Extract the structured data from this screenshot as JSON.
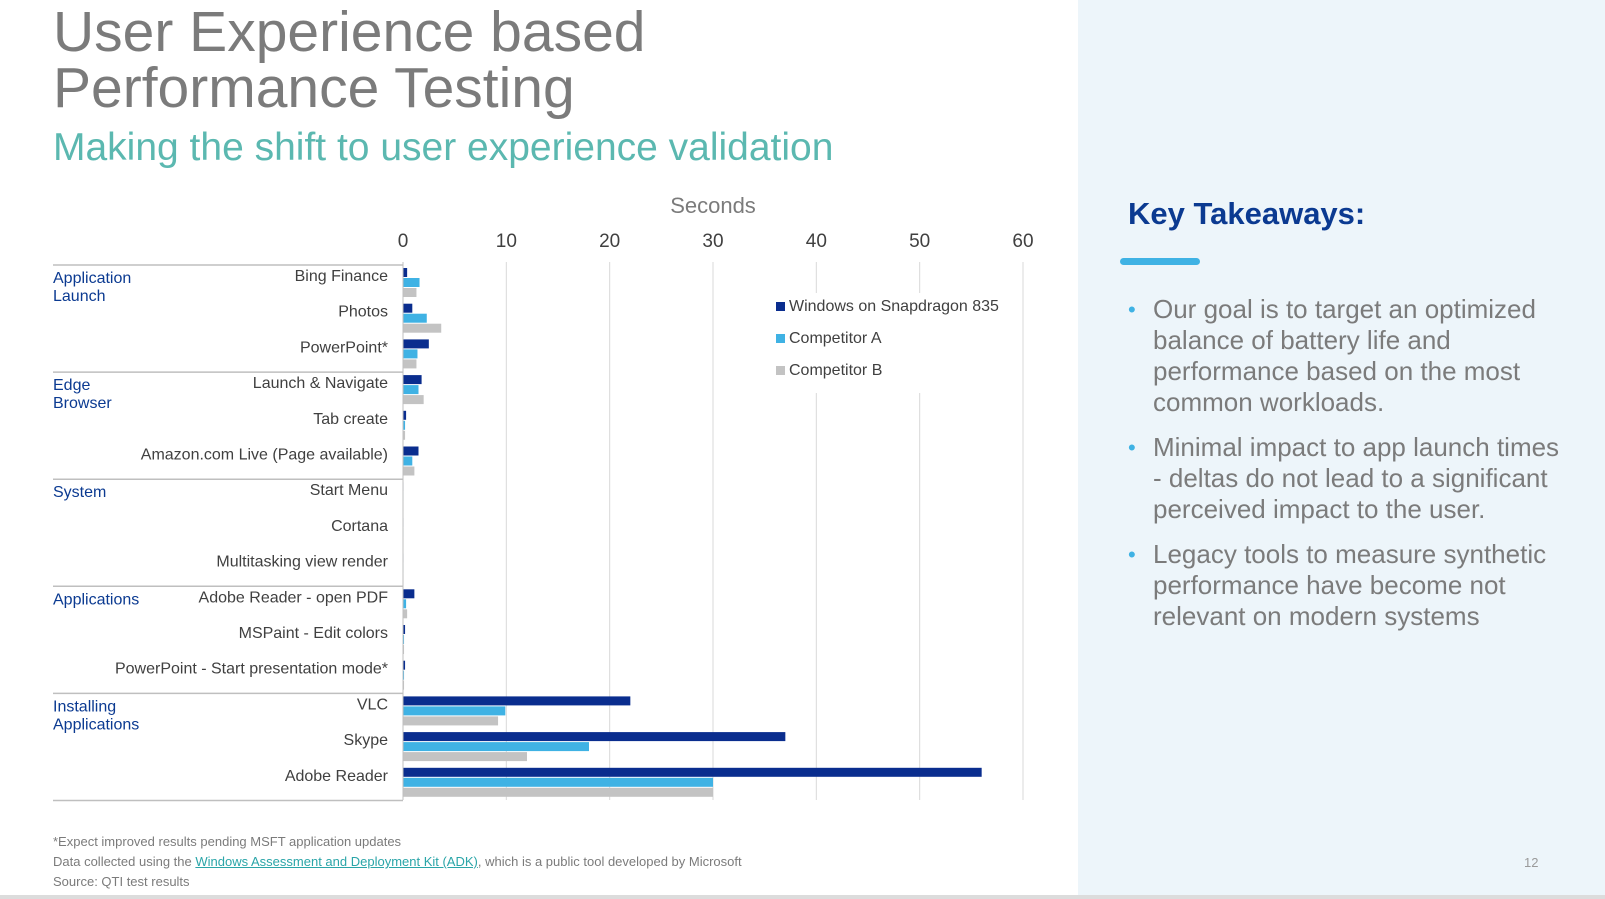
{
  "title": {
    "line1": "User Experience based",
    "line2": "Performance Testing"
  },
  "subtitle": "Making the shift to user experience validation",
  "chart_data": {
    "type": "bar",
    "orientation": "horizontal",
    "title": "Seconds",
    "xlim": [
      0,
      60
    ],
    "xticks": [
      0,
      10,
      20,
      30,
      40,
      50,
      60
    ],
    "grid": true,
    "legend_position": "top-right",
    "groups": [
      {
        "name": "Application Launch",
        "categories": [
          "Bing Finance",
          "Photos",
          "PowerPoint*"
        ]
      },
      {
        "name": "Edge Browser",
        "categories": [
          "Launch & Navigate",
          "Tab create",
          "Amazon.com Live (Page available)"
        ]
      },
      {
        "name": "System",
        "categories": [
          "Start Menu",
          "Cortana",
          "Multitasking view render"
        ]
      },
      {
        "name": "Applications",
        "categories": [
          "Adobe Reader - open PDF",
          "MSPaint - Edit colors",
          "PowerPoint - Start presentation mode*"
        ]
      },
      {
        "name": "Installing Applications",
        "categories": [
          "VLC",
          "Skype",
          "Adobe Reader"
        ]
      }
    ],
    "categories": [
      "Bing Finance",
      "Photos",
      "PowerPoint*",
      "Launch & Navigate",
      "Tab create",
      "Amazon.com Live (Page available)",
      "Start Menu",
      "Cortana",
      "Multitasking view render",
      "Adobe Reader - open PDF",
      "MSPaint - Edit colors",
      "PowerPoint - Start presentation mode*",
      "VLC",
      "Skype",
      "Adobe Reader"
    ],
    "series": [
      {
        "name": "Windows on Snapdragon 835",
        "color": "#0a2d8e",
        "values": [
          0.4,
          0.9,
          2.5,
          1.8,
          0.3,
          1.5,
          0.05,
          0.05,
          0.05,
          1.1,
          0.2,
          0.2,
          22,
          37,
          56
        ]
      },
      {
        "name": "Competitor A",
        "color": "#3fb2e4",
        "values": [
          1.6,
          2.3,
          1.4,
          1.5,
          0.2,
          0.9,
          0.05,
          0.05,
          0.05,
          0.3,
          0.1,
          0.1,
          9.9,
          18,
          30
        ]
      },
      {
        "name": "Competitor B",
        "color": "#c3c3c3",
        "values": [
          1.3,
          3.7,
          1.3,
          2.0,
          0.2,
          1.1,
          0.05,
          0.05,
          0.05,
          0.4,
          0.1,
          0.1,
          9.2,
          12,
          30
        ]
      }
    ]
  },
  "takeaways": {
    "title": "Key Takeaways:",
    "items": [
      "Our goal is to target an optimized balance of battery life and performance based on the most common workloads.",
      "Minimal impact to app launch times - deltas do not lead to a significant perceived impact to the user.",
      "Legacy tools to measure synthetic performance have become not relevant on modern systems"
    ]
  },
  "footnotes": {
    "line1": "*Expect improved results pending MSFT application updates",
    "line2_prefix": "Data collected using the ",
    "line2_link": "Windows Assessment and Deployment Kit (ADK)",
    "line2_suffix": ", which is a public tool developed by Microsoft",
    "line3": "Source: QTI test results"
  },
  "page_number": "12"
}
